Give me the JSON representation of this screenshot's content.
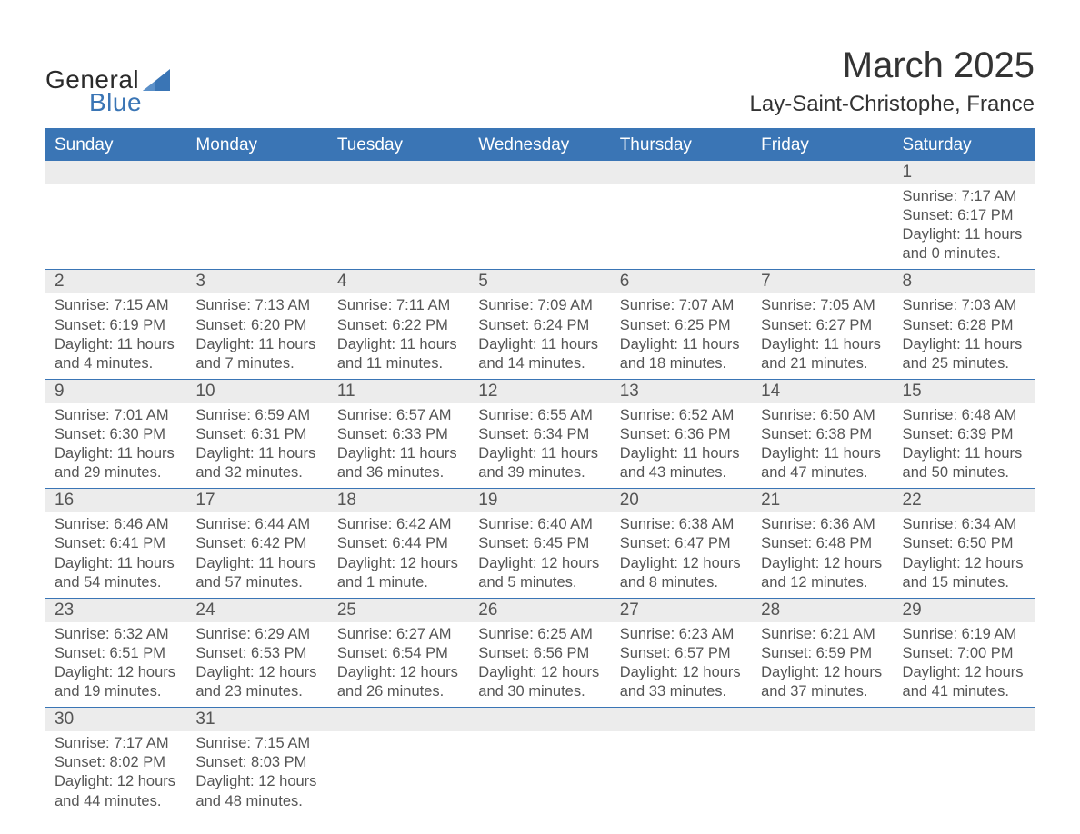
{
  "logo": {
    "text_general": "General",
    "text_blue": "Blue"
  },
  "title": {
    "month": "March 2025",
    "location": "Lay-Saint-Christophe, France"
  },
  "colors": {
    "header_bg": "#3a75b5",
    "header_text": "#ffffff",
    "daynum_bg": "#ececec",
    "row_border": "#3a75b5",
    "body_text": "#555555",
    "page_bg": "#ffffff"
  },
  "weekdays": [
    "Sunday",
    "Monday",
    "Tuesday",
    "Wednesday",
    "Thursday",
    "Friday",
    "Saturday"
  ],
  "weeks": [
    [
      {
        "day": "",
        "sunrise": "",
        "sunset": "",
        "daylight": ""
      },
      {
        "day": "",
        "sunrise": "",
        "sunset": "",
        "daylight": ""
      },
      {
        "day": "",
        "sunrise": "",
        "sunset": "",
        "daylight": ""
      },
      {
        "day": "",
        "sunrise": "",
        "sunset": "",
        "daylight": ""
      },
      {
        "day": "",
        "sunrise": "",
        "sunset": "",
        "daylight": ""
      },
      {
        "day": "",
        "sunrise": "",
        "sunset": "",
        "daylight": ""
      },
      {
        "day": "1",
        "sunrise": "Sunrise: 7:17 AM",
        "sunset": "Sunset: 6:17 PM",
        "daylight": "Daylight: 11 hours and 0 minutes."
      }
    ],
    [
      {
        "day": "2",
        "sunrise": "Sunrise: 7:15 AM",
        "sunset": "Sunset: 6:19 PM",
        "daylight": "Daylight: 11 hours and 4 minutes."
      },
      {
        "day": "3",
        "sunrise": "Sunrise: 7:13 AM",
        "sunset": "Sunset: 6:20 PM",
        "daylight": "Daylight: 11 hours and 7 minutes."
      },
      {
        "day": "4",
        "sunrise": "Sunrise: 7:11 AM",
        "sunset": "Sunset: 6:22 PM",
        "daylight": "Daylight: 11 hours and 11 minutes."
      },
      {
        "day": "5",
        "sunrise": "Sunrise: 7:09 AM",
        "sunset": "Sunset: 6:24 PM",
        "daylight": "Daylight: 11 hours and 14 minutes."
      },
      {
        "day": "6",
        "sunrise": "Sunrise: 7:07 AM",
        "sunset": "Sunset: 6:25 PM",
        "daylight": "Daylight: 11 hours and 18 minutes."
      },
      {
        "day": "7",
        "sunrise": "Sunrise: 7:05 AM",
        "sunset": "Sunset: 6:27 PM",
        "daylight": "Daylight: 11 hours and 21 minutes."
      },
      {
        "day": "8",
        "sunrise": "Sunrise: 7:03 AM",
        "sunset": "Sunset: 6:28 PM",
        "daylight": "Daylight: 11 hours and 25 minutes."
      }
    ],
    [
      {
        "day": "9",
        "sunrise": "Sunrise: 7:01 AM",
        "sunset": "Sunset: 6:30 PM",
        "daylight": "Daylight: 11 hours and 29 minutes."
      },
      {
        "day": "10",
        "sunrise": "Sunrise: 6:59 AM",
        "sunset": "Sunset: 6:31 PM",
        "daylight": "Daylight: 11 hours and 32 minutes."
      },
      {
        "day": "11",
        "sunrise": "Sunrise: 6:57 AM",
        "sunset": "Sunset: 6:33 PM",
        "daylight": "Daylight: 11 hours and 36 minutes."
      },
      {
        "day": "12",
        "sunrise": "Sunrise: 6:55 AM",
        "sunset": "Sunset: 6:34 PM",
        "daylight": "Daylight: 11 hours and 39 minutes."
      },
      {
        "day": "13",
        "sunrise": "Sunrise: 6:52 AM",
        "sunset": "Sunset: 6:36 PM",
        "daylight": "Daylight: 11 hours and 43 minutes."
      },
      {
        "day": "14",
        "sunrise": "Sunrise: 6:50 AM",
        "sunset": "Sunset: 6:38 PM",
        "daylight": "Daylight: 11 hours and 47 minutes."
      },
      {
        "day": "15",
        "sunrise": "Sunrise: 6:48 AM",
        "sunset": "Sunset: 6:39 PM",
        "daylight": "Daylight: 11 hours and 50 minutes."
      }
    ],
    [
      {
        "day": "16",
        "sunrise": "Sunrise: 6:46 AM",
        "sunset": "Sunset: 6:41 PM",
        "daylight": "Daylight: 11 hours and 54 minutes."
      },
      {
        "day": "17",
        "sunrise": "Sunrise: 6:44 AM",
        "sunset": "Sunset: 6:42 PM",
        "daylight": "Daylight: 11 hours and 57 minutes."
      },
      {
        "day": "18",
        "sunrise": "Sunrise: 6:42 AM",
        "sunset": "Sunset: 6:44 PM",
        "daylight": "Daylight: 12 hours and 1 minute."
      },
      {
        "day": "19",
        "sunrise": "Sunrise: 6:40 AM",
        "sunset": "Sunset: 6:45 PM",
        "daylight": "Daylight: 12 hours and 5 minutes."
      },
      {
        "day": "20",
        "sunrise": "Sunrise: 6:38 AM",
        "sunset": "Sunset: 6:47 PM",
        "daylight": "Daylight: 12 hours and 8 minutes."
      },
      {
        "day": "21",
        "sunrise": "Sunrise: 6:36 AM",
        "sunset": "Sunset: 6:48 PM",
        "daylight": "Daylight: 12 hours and 12 minutes."
      },
      {
        "day": "22",
        "sunrise": "Sunrise: 6:34 AM",
        "sunset": "Sunset: 6:50 PM",
        "daylight": "Daylight: 12 hours and 15 minutes."
      }
    ],
    [
      {
        "day": "23",
        "sunrise": "Sunrise: 6:32 AM",
        "sunset": "Sunset: 6:51 PM",
        "daylight": "Daylight: 12 hours and 19 minutes."
      },
      {
        "day": "24",
        "sunrise": "Sunrise: 6:29 AM",
        "sunset": "Sunset: 6:53 PM",
        "daylight": "Daylight: 12 hours and 23 minutes."
      },
      {
        "day": "25",
        "sunrise": "Sunrise: 6:27 AM",
        "sunset": "Sunset: 6:54 PM",
        "daylight": "Daylight: 12 hours and 26 minutes."
      },
      {
        "day": "26",
        "sunrise": "Sunrise: 6:25 AM",
        "sunset": "Sunset: 6:56 PM",
        "daylight": "Daylight: 12 hours and 30 minutes."
      },
      {
        "day": "27",
        "sunrise": "Sunrise: 6:23 AM",
        "sunset": "Sunset: 6:57 PM",
        "daylight": "Daylight: 12 hours and 33 minutes."
      },
      {
        "day": "28",
        "sunrise": "Sunrise: 6:21 AM",
        "sunset": "Sunset: 6:59 PM",
        "daylight": "Daylight: 12 hours and 37 minutes."
      },
      {
        "day": "29",
        "sunrise": "Sunrise: 6:19 AM",
        "sunset": "Sunset: 7:00 PM",
        "daylight": "Daylight: 12 hours and 41 minutes."
      }
    ],
    [
      {
        "day": "30",
        "sunrise": "Sunrise: 7:17 AM",
        "sunset": "Sunset: 8:02 PM",
        "daylight": "Daylight: 12 hours and 44 minutes."
      },
      {
        "day": "31",
        "sunrise": "Sunrise: 7:15 AM",
        "sunset": "Sunset: 8:03 PM",
        "daylight": "Daylight: 12 hours and 48 minutes."
      },
      {
        "day": "",
        "sunrise": "",
        "sunset": "",
        "daylight": ""
      },
      {
        "day": "",
        "sunrise": "",
        "sunset": "",
        "daylight": ""
      },
      {
        "day": "",
        "sunrise": "",
        "sunset": "",
        "daylight": ""
      },
      {
        "day": "",
        "sunrise": "",
        "sunset": "",
        "daylight": ""
      },
      {
        "day": "",
        "sunrise": "",
        "sunset": "",
        "daylight": ""
      }
    ]
  ]
}
